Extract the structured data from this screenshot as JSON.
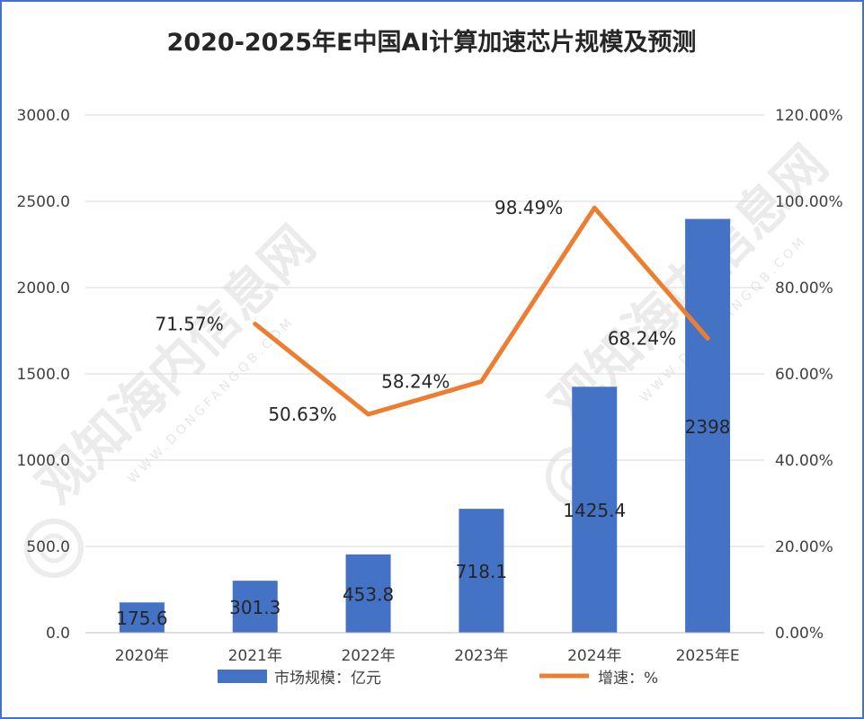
{
  "chart_data": {
    "type": "bar",
    "title": "2020-2025年E中国AI计算加速芯片规模及预测",
    "categories": [
      "2020年",
      "2021年",
      "2022年",
      "2023年",
      "2024年",
      "2025年E"
    ],
    "series": [
      {
        "name": "市场规模：亿元",
        "type": "bar",
        "axis": "left",
        "color": "#4472C4",
        "values": [
          175.6,
          301.3,
          453.8,
          718.1,
          1425.4,
          2398
        ],
        "labels": [
          "175.6",
          "301.3",
          "453.8",
          "718.1",
          "1425.4",
          "2398"
        ]
      },
      {
        "name": "增速：%",
        "type": "line",
        "axis": "right",
        "color": "#ED7D31",
        "values": [
          null,
          71.57,
          50.63,
          58.24,
          98.49,
          68.24
        ],
        "labels": [
          "",
          "71.57%",
          "50.63%",
          "58.24%",
          "98.49%",
          "68.24%"
        ]
      }
    ],
    "y_left": {
      "range": [
        0,
        3000
      ],
      "ticks": [
        "0.0",
        "500.0",
        "1000.0",
        "1500.0",
        "2000.0",
        "2500.0",
        "3000.0"
      ]
    },
    "y_right": {
      "range": [
        0,
        120
      ],
      "ticks": [
        "0.00%",
        "20.00%",
        "40.00%",
        "60.00%",
        "80.00%",
        "100.00%",
        "120.00%"
      ]
    },
    "grid": true,
    "legend": "bottom"
  },
  "watermark": {
    "text": "观知海内信息网",
    "url": "WWW.DONGFANGQB.COM"
  }
}
